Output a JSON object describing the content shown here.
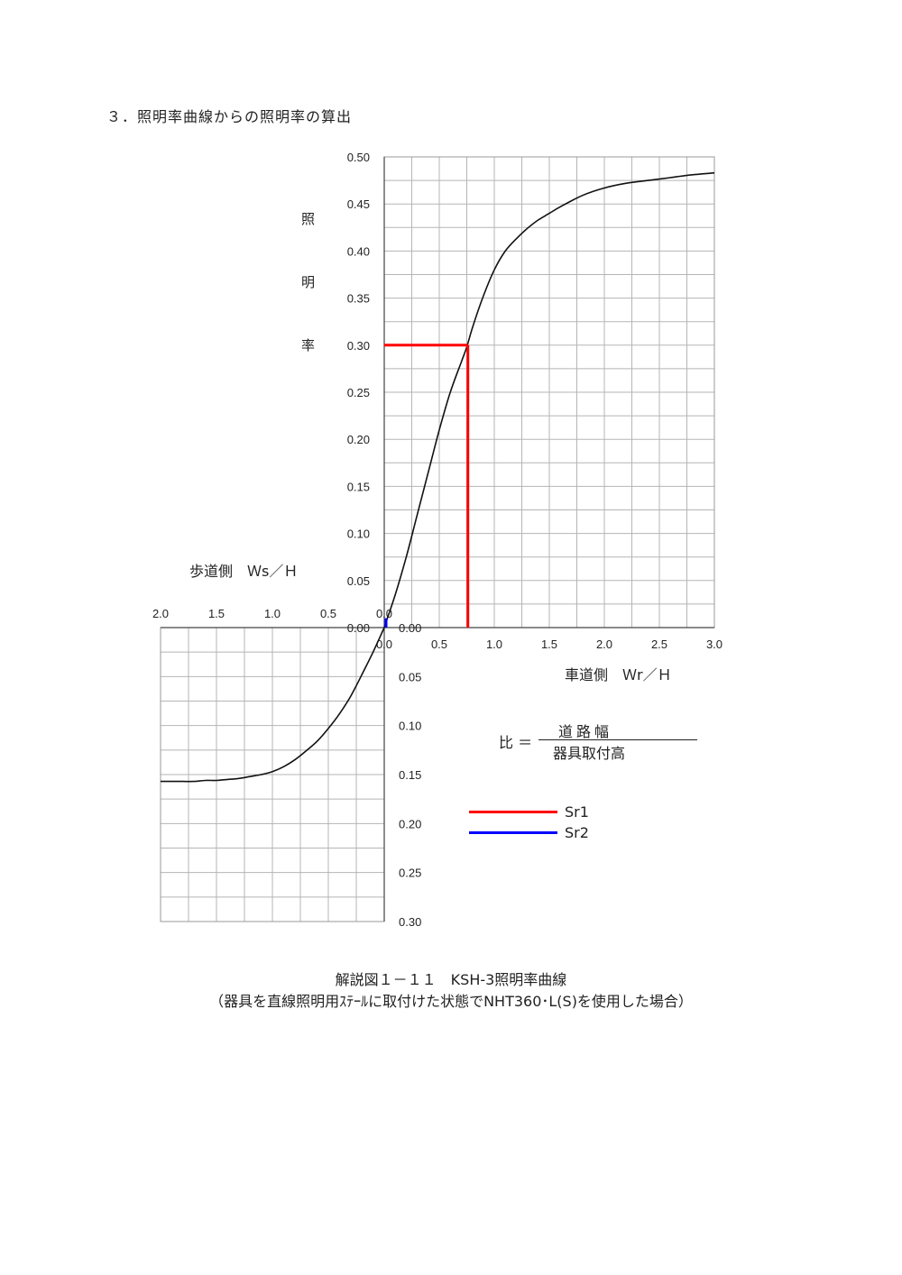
{
  "heading": "３．照明率曲線からの照明率の算出",
  "caption_line1": "解説図１－１１　KSH-3照明率曲線",
  "caption_line2": "（器具を直線照明用ｽﾃｰﾙに取付けた状態でNHT360･L(S)を使用した場合）",
  "y_axis_label_chars": [
    "照",
    "明",
    "率"
  ],
  "sidewalk_axis_title": "歩道側　Ｗs／Ｈ",
  "roadway_axis_title": "車道側　Ｗr／Ｈ",
  "formula": {
    "ratio_label": "比 ＝",
    "numerator": "道路幅",
    "denominator": "器具取付高"
  },
  "legend": [
    {
      "label": "Sr1",
      "color": "#ff0000"
    },
    {
      "label": "Sr2",
      "color": "#0000ff"
    }
  ],
  "chart_data": {
    "type": "line",
    "roadway_panel": {
      "xlim": [
        0,
        3.0
      ],
      "ylim": [
        0,
        0.5
      ],
      "x_ticks": [
        "0.0",
        "0.5",
        "1.0",
        "1.5",
        "2.0",
        "2.5",
        "3.0"
      ],
      "y_ticks": [
        "0.00",
        "0.05",
        "0.10",
        "0.15",
        "0.20",
        "0.25",
        "0.30",
        "0.35",
        "0.40",
        "0.45",
        "0.50"
      ],
      "curve": {
        "x": [
          0,
          0.1,
          0.2,
          0.3,
          0.4,
          0.5,
          0.6,
          0.7,
          0.75,
          0.8,
          0.9,
          1.0,
          1.1,
          1.2,
          1.3,
          1.4,
          1.5,
          1.6,
          1.8,
          2.0,
          2.2,
          2.4,
          2.6,
          2.8,
          3.0
        ],
        "y": [
          0,
          0.035,
          0.075,
          0.12,
          0.165,
          0.21,
          0.25,
          0.282,
          0.298,
          0.318,
          0.352,
          0.38,
          0.4,
          0.413,
          0.424,
          0.433,
          0.44,
          0.447,
          0.459,
          0.467,
          0.472,
          0.475,
          0.478,
          0.481,
          0.483
        ]
      },
      "reading_Sr1": {
        "x": 0.76,
        "y": 0.3
      },
      "reading_Sr2": {
        "x": 0.0,
        "y": 0.01
      }
    },
    "sidewalk_panel": {
      "xlim": [
        2.0,
        0
      ],
      "ylim": [
        0,
        0.3
      ],
      "x_ticks": [
        "2.0",
        "1.5",
        "1.0",
        "0.5",
        "0.0"
      ],
      "y_ticks": [
        "0.00",
        "0.05",
        "0.10",
        "0.15",
        "0.20",
        "0.25",
        "0.30"
      ],
      "curve": {
        "x": [
          0,
          0.1,
          0.2,
          0.3,
          0.4,
          0.5,
          0.6,
          0.7,
          0.8,
          0.9,
          1.0,
          1.1,
          1.2,
          1.3,
          1.4,
          1.5,
          1.6,
          1.7,
          1.8,
          1.9,
          2.0
        ],
        "y": [
          0,
          0.025,
          0.048,
          0.07,
          0.088,
          0.103,
          0.116,
          0.126,
          0.135,
          0.142,
          0.147,
          0.15,
          0.152,
          0.154,
          0.155,
          0.156,
          0.156,
          0.157,
          0.157,
          0.157,
          0.157
        ]
      }
    }
  }
}
